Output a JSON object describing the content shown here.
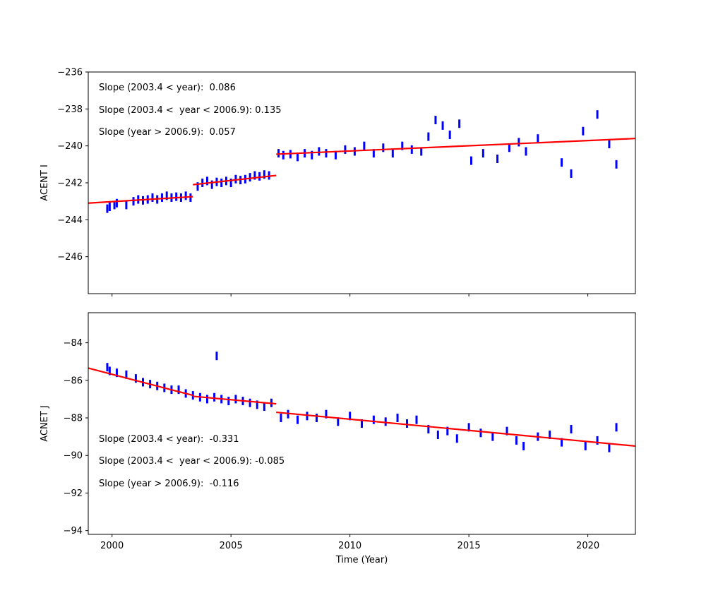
{
  "chart_data": [
    {
      "type": "scatter",
      "title": "",
      "xlabel": "",
      "ylabel": "ACENT I",
      "xlim": [
        1999,
        2022
      ],
      "ylim": [
        -248,
        -236
      ],
      "xticks": [
        "2000",
        "2005",
        "2010",
        "2015",
        "2020"
      ],
      "yticks": [
        "−236",
        "−238",
        "−240",
        "−242",
        "−244",
        "−246"
      ],
      "show_xtick_labels": false,
      "annotations": [
        "Slope (2003.4 < year):  0.086",
        "Slope (2003.4 <  year < 2006.9): 0.135",
        "Slope (year > 2006.9):  0.057"
      ],
      "fit_segments": [
        {
          "x": [
            1999,
            2003.4
          ],
          "y": [
            -243.1,
            -242.75
          ]
        },
        {
          "x": [
            2003.4,
            2006.9
          ],
          "y": [
            -242.1,
            -241.6
          ]
        },
        {
          "x": [
            2006.9,
            2022
          ],
          "y": [
            -240.45,
            -239.6
          ]
        }
      ],
      "series": [
        {
          "values": [
            [
              1999.8,
              -243.4
            ],
            [
              1999.9,
              -243.3
            ],
            [
              2000.1,
              -243.2
            ],
            [
              2000.2,
              -243.1
            ],
            [
              2000.6,
              -243.2
            ],
            [
              2000.9,
              -243.0
            ],
            [
              2001.1,
              -242.9
            ],
            [
              2001.3,
              -242.95
            ],
            [
              2001.5,
              -242.9
            ],
            [
              2001.7,
              -242.8
            ],
            [
              2001.9,
              -242.9
            ],
            [
              2002.1,
              -242.8
            ],
            [
              2002.3,
              -242.7
            ],
            [
              2002.5,
              -242.8
            ],
            [
              2002.7,
              -242.75
            ],
            [
              2002.9,
              -242.8
            ],
            [
              2003.1,
              -242.7
            ],
            [
              2003.3,
              -242.8
            ],
            [
              2003.6,
              -242.2
            ],
            [
              2003.8,
              -242.0
            ],
            [
              2004.0,
              -241.9
            ],
            [
              2004.2,
              -242.1
            ],
            [
              2004.4,
              -241.95
            ],
            [
              2004.6,
              -242.0
            ],
            [
              2004.8,
              -241.9
            ],
            [
              2005.0,
              -242.0
            ],
            [
              2005.2,
              -241.8
            ],
            [
              2005.4,
              -241.85
            ],
            [
              2005.6,
              -241.8
            ],
            [
              2005.8,
              -241.7
            ],
            [
              2006.0,
              -241.6
            ],
            [
              2006.2,
              -241.65
            ],
            [
              2006.4,
              -241.55
            ],
            [
              2006.6,
              -241.6
            ],
            [
              2007.0,
              -240.4
            ],
            [
              2007.2,
              -240.5
            ],
            [
              2007.5,
              -240.45
            ],
            [
              2007.8,
              -240.6
            ],
            [
              2008.1,
              -240.4
            ],
            [
              2008.4,
              -240.5
            ],
            [
              2008.7,
              -240.3
            ],
            [
              2009.0,
              -240.4
            ],
            [
              2009.4,
              -240.5
            ],
            [
              2009.8,
              -240.2
            ],
            [
              2010.2,
              -240.3
            ],
            [
              2010.6,
              -240.0
            ],
            [
              2011.0,
              -240.4
            ],
            [
              2011.4,
              -240.1
            ],
            [
              2011.8,
              -240.4
            ],
            [
              2012.2,
              -240.0
            ],
            [
              2012.6,
              -240.2
            ],
            [
              2013.0,
              -240.3
            ],
            [
              2013.3,
              -239.5
            ],
            [
              2013.6,
              -238.6
            ],
            [
              2013.9,
              -238.9
            ],
            [
              2014.2,
              -239.4
            ],
            [
              2014.6,
              -238.8
            ],
            [
              2015.1,
              -240.8
            ],
            [
              2015.6,
              -240.4
            ],
            [
              2016.2,
              -240.7
            ],
            [
              2016.7,
              -240.1
            ],
            [
              2017.1,
              -239.8
            ],
            [
              2017.4,
              -240.3
            ],
            [
              2017.9,
              -239.6
            ],
            [
              2018.9,
              -240.9
            ],
            [
              2019.3,
              -241.5
            ],
            [
              2019.8,
              -239.2
            ],
            [
              2020.4,
              -238.3
            ],
            [
              2020.9,
              -239.9
            ],
            [
              2021.2,
              -241.0
            ]
          ]
        }
      ]
    },
    {
      "type": "scatter",
      "title": "",
      "xlabel": "Time (Year)",
      "ylabel": "ACNET J",
      "xlim": [
        1999,
        2022
      ],
      "ylim": [
        -94.2,
        -82.4
      ],
      "xticks": [
        "2000",
        "2005",
        "2010",
        "2015",
        "2020"
      ],
      "yticks": [
        "−84",
        "−86",
        "−88",
        "−90",
        "−92",
        "−94"
      ],
      "annotations": [
        "Slope (2003.4 < year):  -0.331",
        "Slope (2003.4 <  year < 2006.9): -0.085",
        "Slope (year > 2006.9):  -0.116"
      ],
      "fit_segments": [
        {
          "x": [
            1999,
            2003.4
          ],
          "y": [
            -85.35,
            -86.8
          ]
        },
        {
          "x": [
            2003.4,
            2006.9
          ],
          "y": [
            -86.85,
            -87.25
          ]
        },
        {
          "x": [
            2006.9,
            2022
          ],
          "y": [
            -87.7,
            -89.5
          ]
        }
      ],
      "series": [
        {
          "values": [
            [
              1999.8,
              -85.3
            ],
            [
              1999.9,
              -85.5
            ],
            [
              2000.2,
              -85.6
            ],
            [
              2000.6,
              -85.7
            ],
            [
              2001.0,
              -85.9
            ],
            [
              2001.3,
              -86.1
            ],
            [
              2001.6,
              -86.2
            ],
            [
              2001.9,
              -86.3
            ],
            [
              2002.2,
              -86.4
            ],
            [
              2002.5,
              -86.5
            ],
            [
              2002.8,
              -86.5
            ],
            [
              2003.1,
              -86.7
            ],
            [
              2003.4,
              -86.8
            ],
            [
              2003.7,
              -86.9
            ],
            [
              2004.0,
              -87.0
            ],
            [
              2004.3,
              -86.9
            ],
            [
              2004.4,
              -84.7
            ],
            [
              2004.6,
              -87.0
            ],
            [
              2004.9,
              -87.1
            ],
            [
              2005.2,
              -87.0
            ],
            [
              2005.5,
              -87.1
            ],
            [
              2005.8,
              -87.2
            ],
            [
              2006.1,
              -87.3
            ],
            [
              2006.4,
              -87.4
            ],
            [
              2006.7,
              -87.2
            ],
            [
              2007.1,
              -88.0
            ],
            [
              2007.4,
              -87.8
            ],
            [
              2007.8,
              -88.1
            ],
            [
              2008.2,
              -87.9
            ],
            [
              2008.6,
              -88.0
            ],
            [
              2009.0,
              -87.8
            ],
            [
              2009.5,
              -88.2
            ],
            [
              2010.0,
              -87.9
            ],
            [
              2010.5,
              -88.3
            ],
            [
              2011.0,
              -88.1
            ],
            [
              2011.5,
              -88.2
            ],
            [
              2012.0,
              -88.0
            ],
            [
              2012.4,
              -88.3
            ],
            [
              2012.8,
              -88.1
            ],
            [
              2013.3,
              -88.6
            ],
            [
              2013.7,
              -88.9
            ],
            [
              2014.1,
              -88.7
            ],
            [
              2014.5,
              -89.1
            ],
            [
              2015.0,
              -88.5
            ],
            [
              2015.5,
              -88.8
            ],
            [
              2016.0,
              -89.0
            ],
            [
              2016.6,
              -88.7
            ],
            [
              2017.0,
              -89.2
            ],
            [
              2017.3,
              -89.5
            ],
            [
              2017.9,
              -89.0
            ],
            [
              2018.4,
              -88.9
            ],
            [
              2018.9,
              -89.3
            ],
            [
              2019.3,
              -88.6
            ],
            [
              2019.9,
              -89.5
            ],
            [
              2020.4,
              -89.2
            ],
            [
              2020.9,
              -89.6
            ],
            [
              2021.2,
              -88.5
            ]
          ]
        }
      ]
    }
  ],
  "colors": {
    "points": "#0000ff",
    "fit": "#ff0000",
    "axis": "#000000"
  }
}
